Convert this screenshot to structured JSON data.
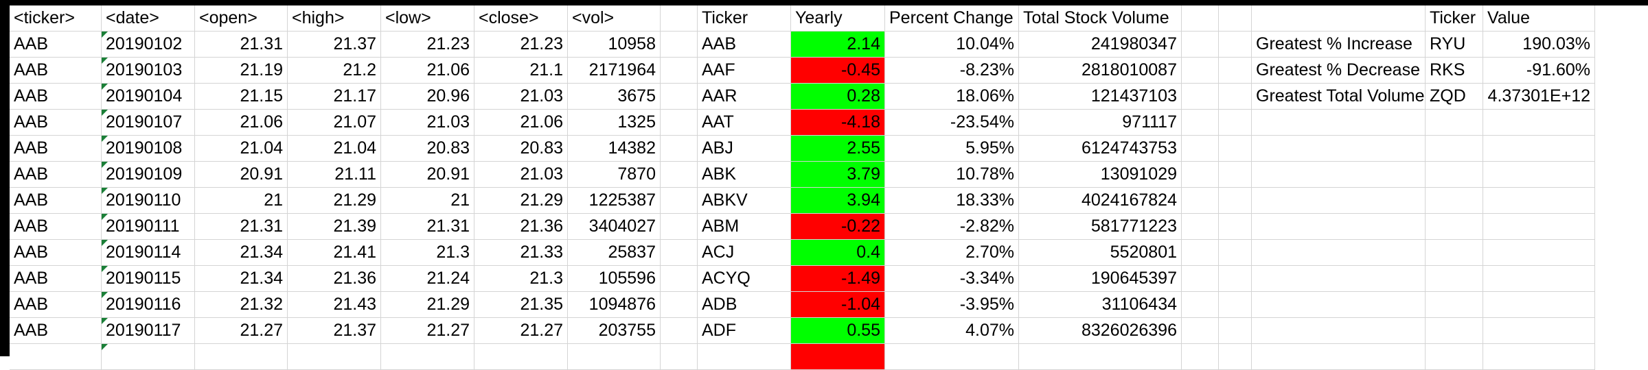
{
  "headers": {
    "A": "<ticker>",
    "B": "<date>",
    "C": "<open>",
    "D": "<high>",
    "E": "<low>",
    "F": "<close>",
    "G": "<vol>",
    "I": "Ticker",
    "J": "Yearly",
    "K": "Percent Change",
    "L": "Total Stock Volume",
    "P": "Ticker",
    "Q": "Value"
  },
  "raw_rows": [
    {
      "ticker": "AAB",
      "date": "20190102",
      "open": "21.31",
      "high": "21.37",
      "low": "21.23",
      "close": "21.23",
      "vol": "10958"
    },
    {
      "ticker": "AAB",
      "date": "20190103",
      "open": "21.19",
      "high": "21.2",
      "low": "21.06",
      "close": "21.1",
      "vol": "2171964"
    },
    {
      "ticker": "AAB",
      "date": "20190104",
      "open": "21.15",
      "high": "21.17",
      "low": "20.96",
      "close": "21.03",
      "vol": "3675"
    },
    {
      "ticker": "AAB",
      "date": "20190107",
      "open": "21.06",
      "high": "21.07",
      "low": "21.03",
      "close": "21.06",
      "vol": "1325"
    },
    {
      "ticker": "AAB",
      "date": "20190108",
      "open": "21.04",
      "high": "21.04",
      "low": "20.83",
      "close": "20.83",
      "vol": "14382"
    },
    {
      "ticker": "AAB",
      "date": "20190109",
      "open": "20.91",
      "high": "21.11",
      "low": "20.91",
      "close": "21.03",
      "vol": "7870"
    },
    {
      "ticker": "AAB",
      "date": "20190110",
      "open": "21",
      "high": "21.29",
      "low": "21",
      "close": "21.29",
      "vol": "1225387"
    },
    {
      "ticker": "AAB",
      "date": "20190111",
      "open": "21.31",
      "high": "21.39",
      "low": "21.31",
      "close": "21.36",
      "vol": "3404027"
    },
    {
      "ticker": "AAB",
      "date": "20190114",
      "open": "21.34",
      "high": "21.41",
      "low": "21.3",
      "close": "21.33",
      "vol": "25837"
    },
    {
      "ticker": "AAB",
      "date": "20190115",
      "open": "21.34",
      "high": "21.36",
      "low": "21.24",
      "close": "21.3",
      "vol": "105596"
    },
    {
      "ticker": "AAB",
      "date": "20190116",
      "open": "21.32",
      "high": "21.43",
      "low": "21.29",
      "close": "21.35",
      "vol": "1094876"
    },
    {
      "ticker": "AAB",
      "date": "20190117",
      "open": "21.27",
      "high": "21.37",
      "low": "21.27",
      "close": "21.27",
      "vol": "203755"
    }
  ],
  "summary_rows": [
    {
      "ticker": "AAB",
      "yearly": "2.14",
      "yearly_sign": "pos",
      "pct": "10.04%",
      "total": "241980347"
    },
    {
      "ticker": "AAF",
      "yearly": "-0.45",
      "yearly_sign": "neg",
      "pct": "-8.23%",
      "total": "2818010087"
    },
    {
      "ticker": "AAR",
      "yearly": "0.28",
      "yearly_sign": "pos",
      "pct": "18.06%",
      "total": "121437103"
    },
    {
      "ticker": "AAT",
      "yearly": "-4.18",
      "yearly_sign": "neg",
      "pct": "-23.54%",
      "total": "971117"
    },
    {
      "ticker": "ABJ",
      "yearly": "2.55",
      "yearly_sign": "pos",
      "pct": "5.95%",
      "total": "6124743753"
    },
    {
      "ticker": "ABK",
      "yearly": "3.79",
      "yearly_sign": "pos",
      "pct": "10.78%",
      "total": "13091029"
    },
    {
      "ticker": "ABKV",
      "yearly": "3.94",
      "yearly_sign": "pos",
      "pct": "18.33%",
      "total": "4024167824"
    },
    {
      "ticker": "ABM",
      "yearly": "-0.22",
      "yearly_sign": "neg",
      "pct": "-2.82%",
      "total": "581771223"
    },
    {
      "ticker": "ACJ",
      "yearly": "0.4",
      "yearly_sign": "pos",
      "pct": "2.70%",
      "total": "5520801"
    },
    {
      "ticker": "ACYQ",
      "yearly": "-1.49",
      "yearly_sign": "neg",
      "pct": "-3.34%",
      "total": "190645397"
    },
    {
      "ticker": "ADB",
      "yearly": "-1.04",
      "yearly_sign": "neg",
      "pct": "-3.95%",
      "total": "31106434"
    },
    {
      "ticker": "ADF",
      "yearly": "0.55",
      "yearly_sign": "pos",
      "pct": "4.07%",
      "total": "8326026396"
    }
  ],
  "greatest": [
    {
      "label": "Greatest % Increase",
      "ticker": "RYU",
      "value": "190.03%"
    },
    {
      "label": "Greatest % Decrease",
      "ticker": "RKS",
      "value": "-91.60%"
    },
    {
      "label": "Greatest Total Volume",
      "ticker": "ZQD",
      "value": "4.37301E+12"
    }
  ],
  "colors": {
    "positive_fill": "#00ff00",
    "negative_fill": "#ff0000",
    "gridline": "#d4d4d4",
    "error_indicator": "#1a7f37"
  }
}
